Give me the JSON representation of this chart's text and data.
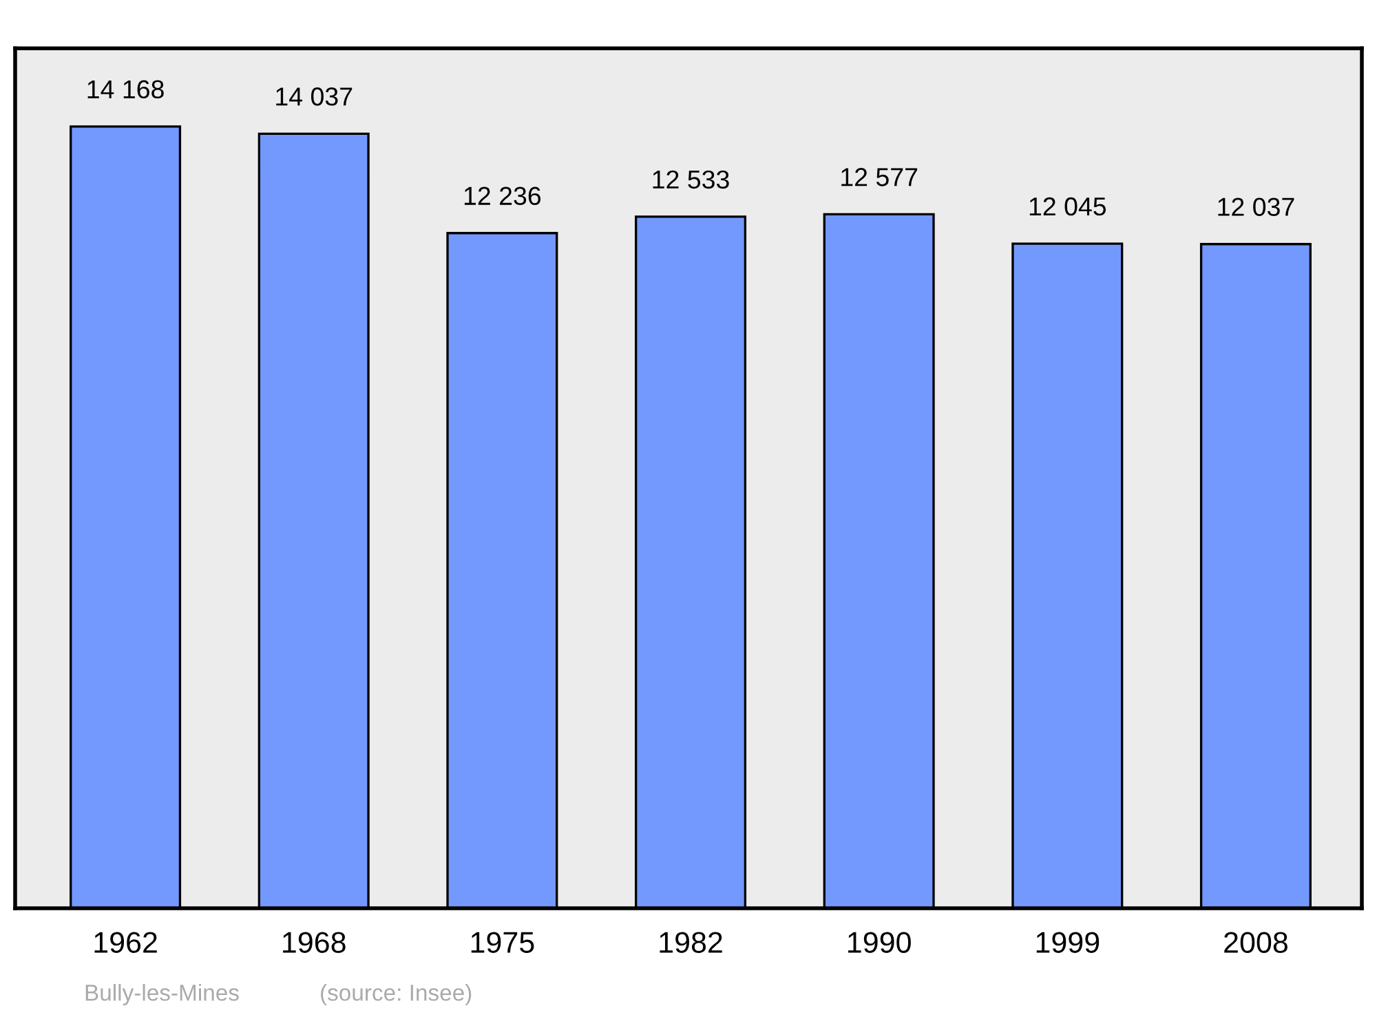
{
  "chart_data": {
    "type": "bar",
    "categories": [
      "1962",
      "1968",
      "1975",
      "1982",
      "1990",
      "1999",
      "2008"
    ],
    "values": [
      14168,
      14037,
      12236,
      12533,
      12577,
      12045,
      12037
    ],
    "value_labels": [
      "14 168",
      "14 037",
      "12 236",
      "12 533",
      "12 577",
      "12 045",
      "12 037"
    ],
    "color": "#7399ff",
    "annotations": [
      "Bully-les-Mines",
      "(source: Insee)"
    ],
    "grid": false,
    "legend": false
  }
}
